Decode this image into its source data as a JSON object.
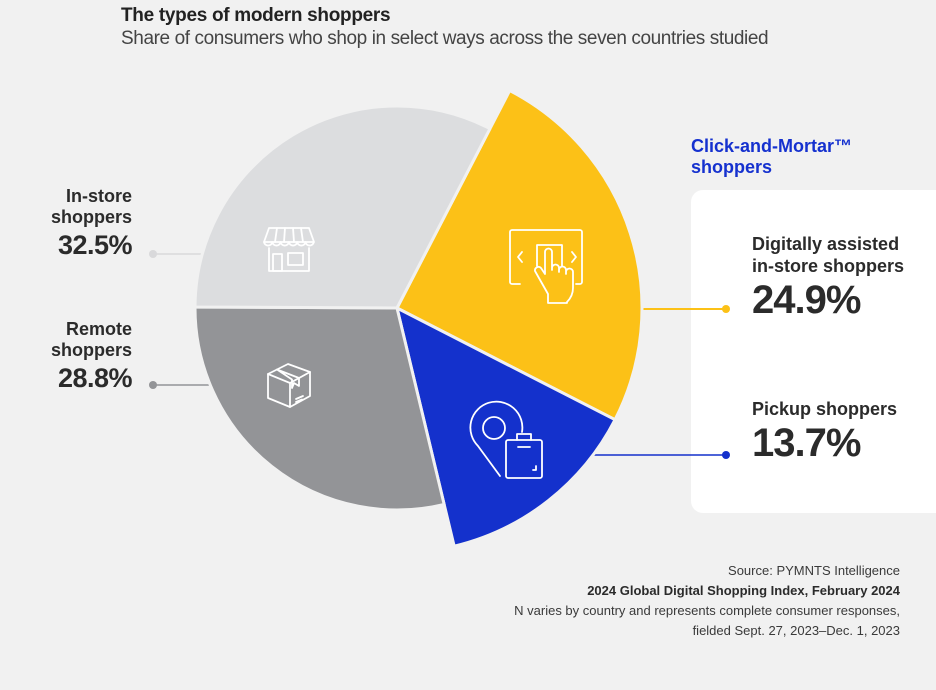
{
  "header": {
    "title": "The types of modern shoppers",
    "subtitle": "Share of consumers who shop in select ways across the seven countries studied"
  },
  "chart_data": {
    "type": "pie",
    "title": "The types of modern shoppers",
    "subtitle": "Share of consumers who shop in select ways across the seven countries studied",
    "start_angle_deg": 27.4,
    "slices": [
      {
        "key": "digital",
        "label": "Digitally assisted in-store shoppers",
        "value": 24.9,
        "display": "24.9%",
        "color": "#fcc117",
        "exploded": true,
        "icon": "touchscreen-hand-icon",
        "group": "Click-and-Mortar™ shoppers"
      },
      {
        "key": "pickup",
        "label": "Pickup shoppers",
        "value": 13.7,
        "display": "13.7%",
        "color": "#1431cc",
        "exploded": true,
        "icon": "location-pin-bag-icon",
        "group": "Click-and-Mortar™ shoppers"
      },
      {
        "key": "remote",
        "label": "Remote shoppers",
        "value": 28.8,
        "display": "28.8%",
        "color": "#939497",
        "exploded": false,
        "icon": "package-box-icon"
      },
      {
        "key": "instore",
        "label": "In-store shoppers",
        "value": 32.5,
        "display": "32.5%",
        "color": "#dcdddf",
        "exploded": false,
        "icon": "storefront-icon"
      }
    ],
    "group_label": "Click-and-Mortar™ shoppers",
    "leader_colors": {
      "instore": "#d9d9db",
      "remote": "#939497",
      "digital": "#fcc117",
      "pickup": "#1431cc"
    }
  },
  "labels": {
    "instore": {
      "name_line1": "In-store",
      "name_line2": "shoppers",
      "value": "32.5%"
    },
    "remote": {
      "name_line1": "Remote",
      "name_line2": "shoppers",
      "value": "28.8%"
    },
    "group": {
      "line1": "Click-and-Mortar™",
      "line2": "shoppers"
    },
    "digital": {
      "name_line1": "Digitally assisted",
      "name_line2": "in-store shoppers",
      "value": "24.9%"
    },
    "pickup": {
      "name": "Pickup shoppers",
      "value": "13.7%"
    }
  },
  "footer": {
    "source": "Source: PYMNTS Intelligence",
    "report": "2024 Global Digital Shopping Index, February 2024",
    "note_line1": "N varies by country and represents complete consumer responses,",
    "note_line2": "fielded Sept. 27, 2023–Dec. 1, 2023"
  }
}
